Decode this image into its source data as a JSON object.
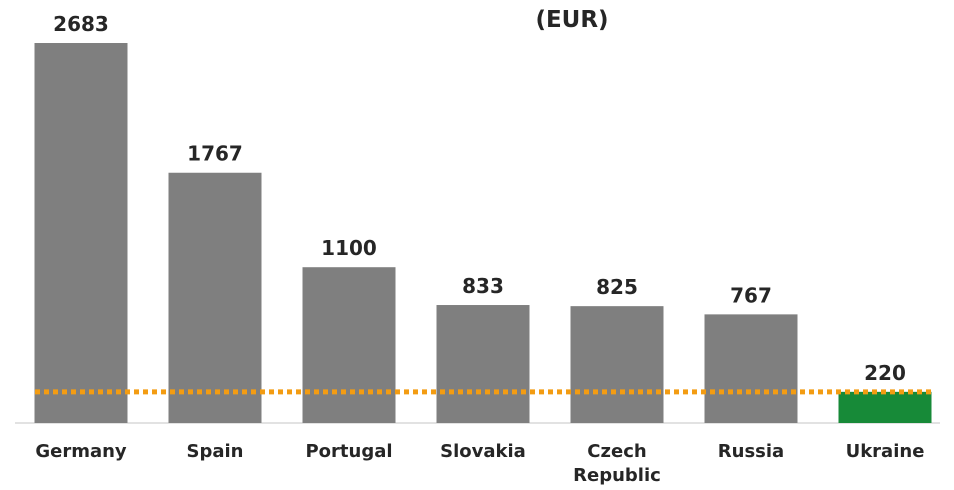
{
  "chart_data": {
    "type": "bar",
    "title": "(EUR)",
    "categories": [
      "Germany",
      "Spain",
      "Portugal",
      "Slovakia",
      "Czech Republic",
      "Russia",
      "Ukraine"
    ],
    "values": [
      2683,
      1767,
      1100,
      833,
      825,
      767,
      220
    ],
    "colors": [
      "#7f7f7f",
      "#7f7f7f",
      "#7f7f7f",
      "#7f7f7f",
      "#7f7f7f",
      "#7f7f7f",
      "#178a38"
    ],
    "reference_line": {
      "value": 220,
      "color": "#f39c12"
    }
  }
}
